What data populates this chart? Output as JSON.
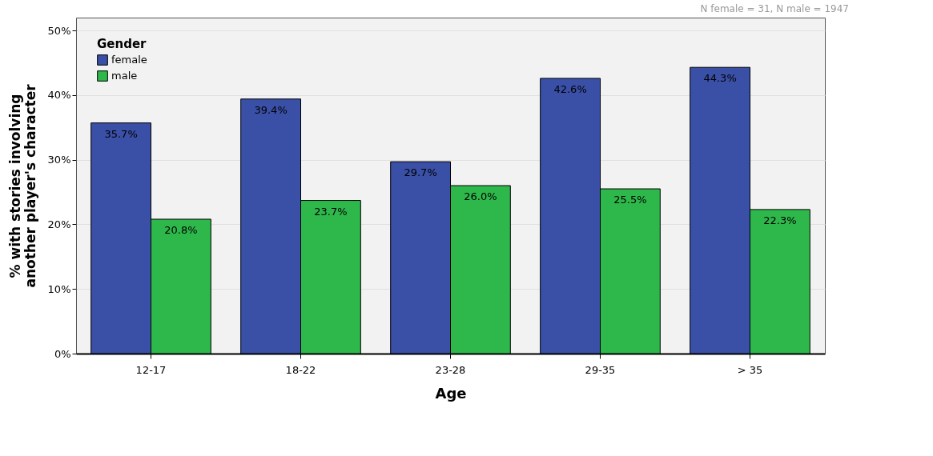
{
  "chart_data": {
    "type": "bar",
    "xlabel": "Age",
    "ylabel": "% with stories involving\nanother player's character",
    "legend_title": "Gender",
    "categories": [
      "12-17",
      "18-22",
      "23-28",
      "29-35",
      "> 35"
    ],
    "series": [
      {
        "name": "female",
        "color": "#3a4fa6",
        "values": [
          35.7,
          39.4,
          29.7,
          42.6,
          44.3
        ],
        "value_labels": [
          "35.7%",
          "39.4%",
          "29.7%",
          "42.6%",
          "44.3%"
        ]
      },
      {
        "name": "male",
        "color": "#2eb84b",
        "values": [
          20.8,
          23.7,
          26.0,
          25.5,
          22.3
        ],
        "value_labels": [
          "20.8%",
          "23.7%",
          "26.0%",
          "25.5%",
          "22.3%"
        ]
      }
    ],
    "ylim": [
      0,
      52
    ],
    "yticks": [
      {
        "value": 0,
        "label": "0%"
      },
      {
        "value": 10,
        "label": "10%"
      },
      {
        "value": 20,
        "label": "20%"
      },
      {
        "value": 30,
        "label": "30%"
      },
      {
        "value": 40,
        "label": "40%"
      },
      {
        "value": 50,
        "label": "50%"
      }
    ],
    "grid": "y",
    "legend": "top left",
    "annotations": [
      "N female = 31, N male = 1947"
    ]
  }
}
